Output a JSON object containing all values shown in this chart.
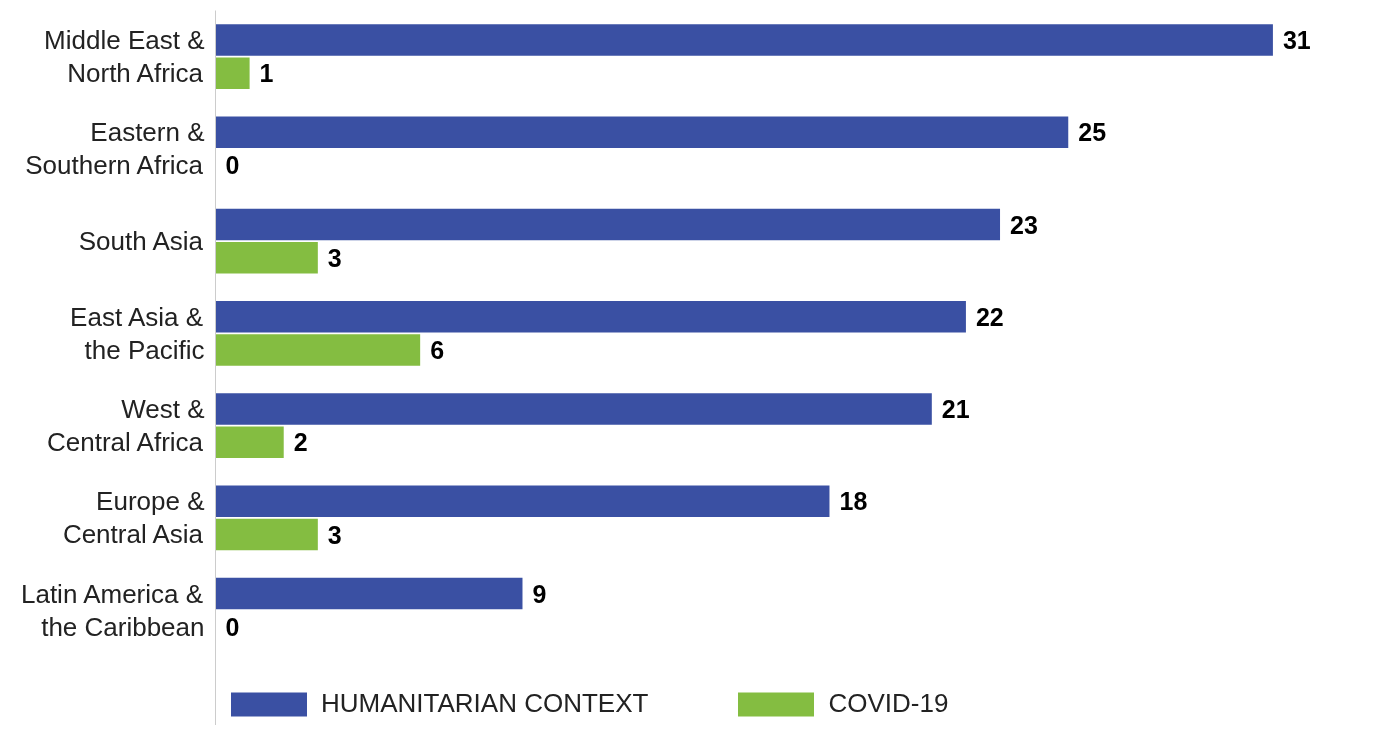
{
  "chart_data": {
    "type": "bar",
    "orientation": "horizontal",
    "categories": [
      "Middle East &\nNorth Africa",
      "Eastern &\nSouthern Africa",
      "South Asia",
      "East Asia &\nthe Pacific",
      "West &\nCentral Africa",
      "Europe &\nCentral Asia",
      "Latin America &\nthe Caribbean"
    ],
    "series": [
      {
        "name": "HUMANITARIAN CONTEXT",
        "color": "#3a50a3",
        "values": [
          31,
          25,
          23,
          22,
          21,
          18,
          9
        ]
      },
      {
        "name": "COVID-19",
        "color": "#84bd41",
        "values": [
          1,
          0,
          3,
          6,
          2,
          3,
          0
        ]
      }
    ],
    "data_labels": true,
    "grid": false,
    "legend": "bottom",
    "tick_labels": "y"
  }
}
